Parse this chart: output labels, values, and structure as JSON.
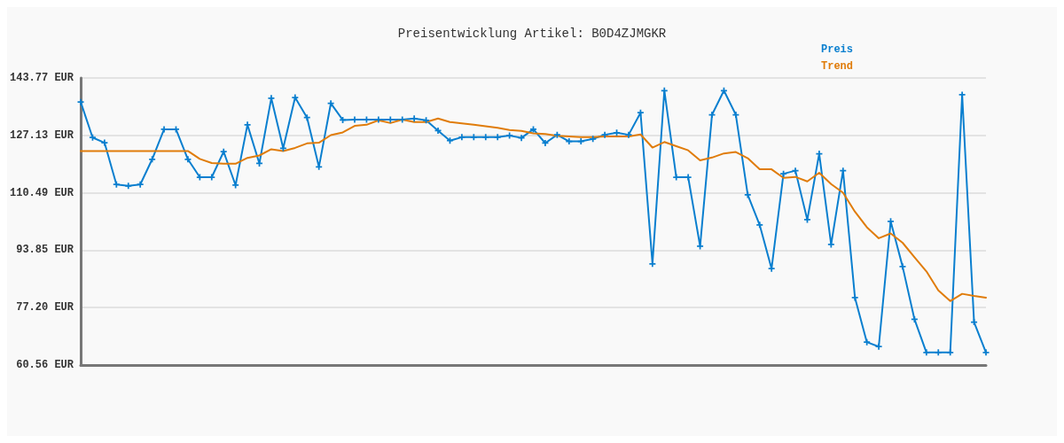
{
  "chart_data": {
    "type": "line",
    "title": "Preisentwicklung Artikel: B0D4ZJMGKR",
    "categories": [
      null,
      null,
      null,
      null,
      null,
      null,
      null,
      null,
      null,
      null,
      null,
      null,
      null,
      null,
      null,
      null,
      null,
      null,
      null,
      null,
      null,
      null,
      null,
      null,
      null,
      null,
      null,
      null,
      null,
      null,
      null,
      null,
      null,
      null,
      null,
      null,
      null,
      null,
      null,
      null,
      null,
      null,
      null,
      null,
      null,
      null,
      null,
      null,
      null,
      null,
      null,
      null,
      null,
      null,
      null,
      null,
      null,
      null,
      null,
      null,
      null,
      null,
      null,
      null,
      null,
      null,
      null,
      null,
      null,
      null,
      null,
      null,
      null,
      null,
      null,
      null,
      null
    ],
    "series": [
      {
        "name": "Preis",
        "color": "#0a7fcf",
        "marker": "cross",
        "values": [
          136.8,
          126.5,
          125.0,
          112.9,
          112.5,
          112.9,
          120.2,
          128.9,
          128.9,
          120.2,
          115.0,
          115.0,
          122.4,
          112.7,
          130.2,
          119.0,
          137.9,
          123.4,
          138.1,
          132.3,
          118.0,
          136.4,
          131.6,
          131.7,
          131.7,
          131.7,
          131.7,
          131.7,
          132.0,
          131.5,
          128.5,
          125.6,
          126.6,
          126.6,
          126.6,
          126.6,
          127.1,
          126.4,
          128.9,
          124.9,
          127.3,
          125.4,
          125.4,
          126.1,
          127.3,
          127.9,
          127.3,
          133.7,
          89.9,
          140.1,
          115.0,
          115.0,
          95.0,
          133.1,
          140.1,
          133.1,
          109.9,
          101.2,
          88.5,
          116.0,
          116.9,
          102.7,
          121.8,
          95.5,
          116.9,
          80.1,
          67.2,
          65.9,
          102.2,
          89.1,
          73.8,
          64.2,
          64.2,
          64.2,
          138.9,
          73.0,
          64.2
        ]
      },
      {
        "name": "Trend",
        "color": "#e07c0a",
        "marker": "none",
        "values": [
          122.6,
          122.6,
          122.6,
          122.6,
          122.6,
          122.6,
          122.6,
          122.6,
          122.6,
          122.6,
          120.3,
          119.1,
          118.9,
          118.9,
          120.6,
          121.3,
          123.1,
          122.6,
          123.5,
          124.8,
          125.0,
          127.2,
          128.0,
          129.9,
          130.2,
          131.5,
          130.7,
          131.7,
          131.0,
          131.0,
          132.0,
          131.0,
          130.6,
          130.2,
          129.8,
          129.3,
          128.7,
          128.4,
          127.7,
          127.5,
          127.0,
          126.8,
          126.6,
          126.6,
          126.8,
          126.8,
          126.8,
          127.4,
          123.6,
          125.2,
          124.0,
          122.8,
          119.9,
          120.7,
          121.9,
          122.3,
          120.5,
          117.3,
          117.3,
          114.8,
          115.1,
          113.8,
          116.3,
          113.0,
          110.5,
          105.0,
          100.5,
          97.3,
          98.7,
          96.0,
          91.8,
          87.7,
          82.2,
          79.1,
          81.2,
          80.6,
          80.1
        ]
      }
    ],
    "ylim": [
      60.56,
      143.77
    ],
    "yticks": [
      {
        "value": 60.56,
        "label": "60.56 EUR"
      },
      {
        "value": 77.2,
        "label": "77.20 EUR"
      },
      {
        "value": 93.85,
        "label": "93.85 EUR"
      },
      {
        "value": 110.49,
        "label": "110.49 EUR"
      },
      {
        "value": 127.13,
        "label": "127.13 EUR"
      },
      {
        "value": 143.77,
        "label": "143.77 EUR"
      }
    ],
    "tick_labels": "y",
    "grid": "y",
    "legend": "top right",
    "line_style": "solid"
  }
}
